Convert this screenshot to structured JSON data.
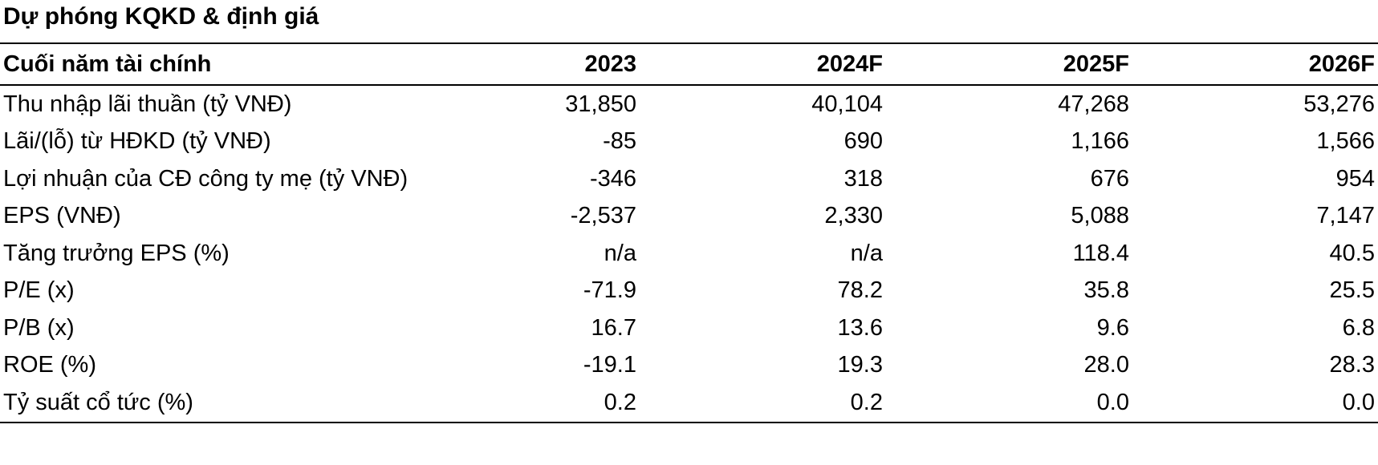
{
  "title": "Dự phóng KQKD & định giá",
  "table": {
    "header": {
      "label": "Cuối năm tài chính",
      "years": [
        "2023",
        "2024F",
        "2025F",
        "2026F"
      ]
    },
    "rows": [
      {
        "label": "Thu nhập lãi thuần (tỷ VNĐ)",
        "values": [
          "31,850",
          "40,104",
          "47,268",
          "53,276"
        ]
      },
      {
        "label": "Lãi/(lỗ) từ HĐKD (tỷ VNĐ)",
        "values": [
          "-85",
          "690",
          "1,166",
          "1,566"
        ]
      },
      {
        "label": "Lợi nhuận của CĐ công ty mẹ (tỷ VNĐ)",
        "values": [
          "-346",
          "318",
          "676",
          "954"
        ]
      },
      {
        "label": "EPS (VNĐ)",
        "values": [
          "-2,537",
          "2,330",
          "5,088",
          "7,147"
        ]
      },
      {
        "label": "Tăng trưởng EPS (%)",
        "values": [
          "n/a",
          "n/a",
          "118.4",
          "40.5"
        ]
      },
      {
        "label": "P/E (x)",
        "values": [
          "-71.9",
          "78.2",
          "35.8",
          "25.5"
        ]
      },
      {
        "label": "P/B (x)",
        "values": [
          "16.7",
          "13.6",
          "9.6",
          "6.8"
        ]
      },
      {
        "label": "ROE (%)",
        "values": [
          "-19.1",
          "19.3",
          "28.0",
          "28.3"
        ]
      },
      {
        "label": "Tỷ suất cổ tức (%)",
        "values": [
          "0.2",
          "0.2",
          "0.0",
          "0.0"
        ]
      }
    ]
  }
}
